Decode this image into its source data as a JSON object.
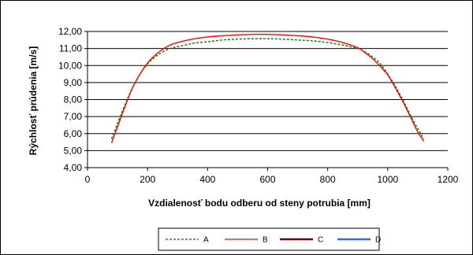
{
  "chart_data": {
    "type": "line",
    "title": "",
    "xlabel": "Vzdialenosť bodu odberu od steny potrubia [mm]",
    "ylabel": "Rýchlosť prúdenia [m/s]",
    "xlim": [
      0,
      1200
    ],
    "ylim": [
      4.0,
      12.0
    ],
    "x_ticks": [
      "0",
      "200",
      "400",
      "600",
      "800",
      "1000",
      "1200"
    ],
    "y_ticks": [
      "4,00",
      "5,00",
      "6,00",
      "7,00",
      "8,00",
      "9,00",
      "10,00",
      "11,00",
      "12,00"
    ],
    "grid": "horizontal",
    "legend_position": "bottom",
    "series": [
      {
        "name": "A",
        "color": "#008000",
        "dash": "dashed",
        "x": [
          80,
          100,
          125,
          150,
          175,
          200,
          225,
          250,
          275,
          300,
          350,
          400,
          450,
          500,
          550,
          600,
          650,
          700,
          750,
          800,
          850,
          900,
          925,
          950,
          975,
          1000,
          1025,
          1050,
          1075,
          1100,
          1120
        ],
        "y": [
          5.7,
          6.6,
          7.7,
          8.7,
          9.5,
          10.1,
          10.5,
          10.8,
          11.0,
          11.1,
          11.3,
          11.4,
          11.5,
          11.55,
          11.58,
          11.58,
          11.55,
          11.5,
          11.45,
          11.35,
          11.2,
          11.0,
          10.8,
          10.5,
          10.1,
          9.5,
          8.8,
          8.0,
          7.1,
          6.3,
          5.7
        ]
      },
      {
        "name": "B",
        "color": "#ff0000",
        "dash": "solid",
        "x": [
          80,
          100,
          125,
          150,
          175,
          200,
          225,
          250,
          275,
          300,
          350,
          400,
          450,
          500,
          550,
          600,
          650,
          700,
          750,
          800,
          850,
          900,
          925,
          950,
          975,
          1000,
          1025,
          1050,
          1075,
          1100,
          1120
        ],
        "y": [
          5.45,
          6.4,
          7.6,
          8.7,
          9.5,
          10.15,
          10.6,
          10.95,
          11.2,
          11.35,
          11.55,
          11.68,
          11.75,
          11.8,
          11.83,
          11.83,
          11.8,
          11.75,
          11.68,
          11.55,
          11.35,
          11.05,
          10.75,
          10.4,
          9.95,
          9.45,
          8.7,
          7.9,
          7.0,
          6.1,
          5.55
        ]
      },
      {
        "name": "C",
        "color": "#800000",
        "dash": "solid",
        "x": [],
        "y": []
      },
      {
        "name": "D",
        "color": "#3366ff",
        "dash": "solid",
        "x": [],
        "y": []
      }
    ]
  }
}
